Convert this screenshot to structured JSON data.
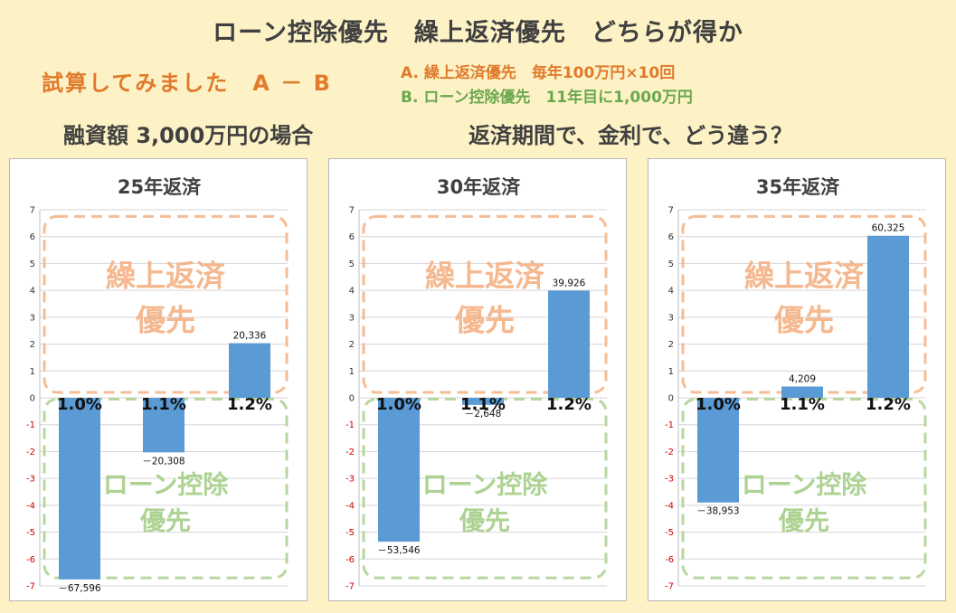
{
  "header": {
    "title": "ローン控除優先　繰上返済優先　どちらが得か",
    "subtitle": "試算してみました　A － B",
    "option_a": "A. 繰上返済優先　毎年100万円×10回",
    "option_b": "B. ローン控除優先　11年目に1,000万円",
    "loan_amount": "融資額 3,000万円の場合",
    "question": "返済期間で、金利で、どう違う？"
  },
  "zones": {
    "top_line1": "繰上返済",
    "top_line2": "優先",
    "bottom_line1": "ローン控除",
    "bottom_line2": "優先"
  },
  "colors": {
    "background": "#fdf2c5",
    "bar": "#5b9bd5",
    "zone_top": "#f4b183",
    "zone_bottom": "#a9d18e",
    "negative_tick": "#cc0000"
  },
  "chart_data": [
    {
      "type": "bar",
      "title": "25年返済",
      "categories": [
        "1.0%",
        "1.1%",
        "1.2%"
      ],
      "values": [
        -6.7596,
        -2.0308,
        2.0336
      ],
      "value_labels": [
        "－67,596",
        "－20,308",
        "20,336"
      ],
      "ylim": [
        -7,
        7
      ],
      "yticks": [
        "7",
        "6",
        "5",
        "4",
        "3",
        "2",
        "1",
        "0",
        "-1",
        "-2",
        "-3",
        "-4",
        "-5",
        "-6",
        "-7"
      ],
      "grid": true
    },
    {
      "type": "bar",
      "title": "30年返済",
      "categories": [
        "1.0%",
        "1.1%",
        "1.2%"
      ],
      "values": [
        -5.3546,
        -0.2648,
        3.9926
      ],
      "value_labels": [
        "－53,546",
        "－2,648",
        "39,926"
      ],
      "ylim": [
        -7,
        7
      ],
      "yticks": [
        "7",
        "6",
        "5",
        "4",
        "3",
        "2",
        "1",
        "0",
        "-1",
        "-2",
        "-3",
        "-4",
        "-5",
        "-6",
        "-7"
      ],
      "grid": true
    },
    {
      "type": "bar",
      "title": "35年返済",
      "categories": [
        "1.0%",
        "1.1%",
        "1.2%"
      ],
      "values": [
        -3.8953,
        0.4209,
        6.0325
      ],
      "value_labels": [
        "－38,953",
        "4,209",
        "60,325"
      ],
      "ylim": [
        -7,
        7
      ],
      "yticks": [
        "7",
        "6",
        "5",
        "4",
        "3",
        "2",
        "1",
        "0",
        "-1",
        "-2",
        "-3",
        "-4",
        "-5",
        "-6",
        "-7"
      ],
      "grid": true
    }
  ]
}
